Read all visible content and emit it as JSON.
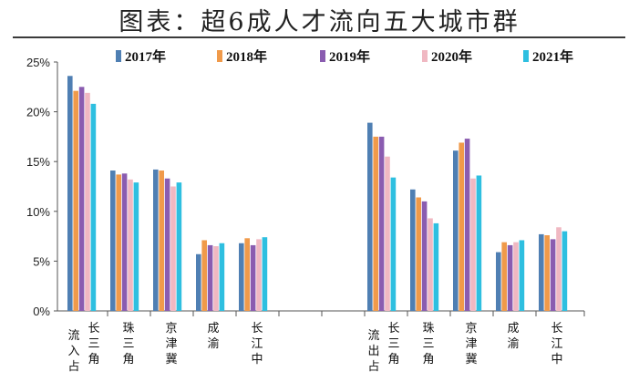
{
  "title": "图表：超6成人才流向五大城市群",
  "colors": {
    "2017年": "#4f7fb3",
    "2018年": "#f09a4a",
    "2019年": "#8a5cb0",
    "2020年": "#f0b8c2",
    "2021年": "#2ebfe0"
  },
  "chart_data": {
    "type": "bar",
    "title": "图表：超6成人才流向五大城市群",
    "xlabel": "",
    "ylabel": "",
    "ylim": [
      0,
      25
    ],
    "yticks": [
      "0%",
      "5%",
      "10%",
      "15%",
      "20%",
      "25%"
    ],
    "ytick_values": [
      0,
      5,
      10,
      15,
      20,
      25
    ],
    "legend_position": "top",
    "grid": false,
    "group_labels": [
      {
        "text": "流入占比",
        "visible": "流入占"
      },
      {
        "text": "流出占比",
        "visible": "流出占"
      }
    ],
    "categories": [
      "长三角",
      "珠三角",
      "京津冀",
      "成渝",
      "长江中游",
      "长三角",
      "珠三角",
      "京津冀",
      "成渝",
      "长江中游"
    ],
    "category_visible": [
      "长三角",
      "珠三角",
      "京津冀",
      "成渝",
      "长江中",
      "长三角",
      "珠三角",
      "京津冀",
      "成渝",
      "长江中"
    ],
    "series": [
      {
        "name": "2017年",
        "values": [
          23.6,
          14.1,
          14.2,
          5.7,
          6.8,
          18.9,
          12.2,
          16.1,
          5.9,
          7.7
        ]
      },
      {
        "name": "2018年",
        "values": [
          22.1,
          13.7,
          14.1,
          7.1,
          7.3,
          17.5,
          11.4,
          16.9,
          6.9,
          7.6
        ]
      },
      {
        "name": "2019年",
        "values": [
          22.5,
          13.8,
          13.3,
          6.6,
          6.6,
          17.5,
          11.0,
          17.3,
          6.6,
          7.2
        ]
      },
      {
        "name": "2020年",
        "values": [
          21.9,
          13.2,
          12.5,
          6.5,
          7.2,
          15.5,
          9.3,
          13.3,
          6.9,
          8.4
        ]
      },
      {
        "name": "2021年",
        "values": [
          20.8,
          12.9,
          12.9,
          6.8,
          7.4,
          13.4,
          8.8,
          13.6,
          7.1,
          8.0
        ]
      }
    ]
  }
}
